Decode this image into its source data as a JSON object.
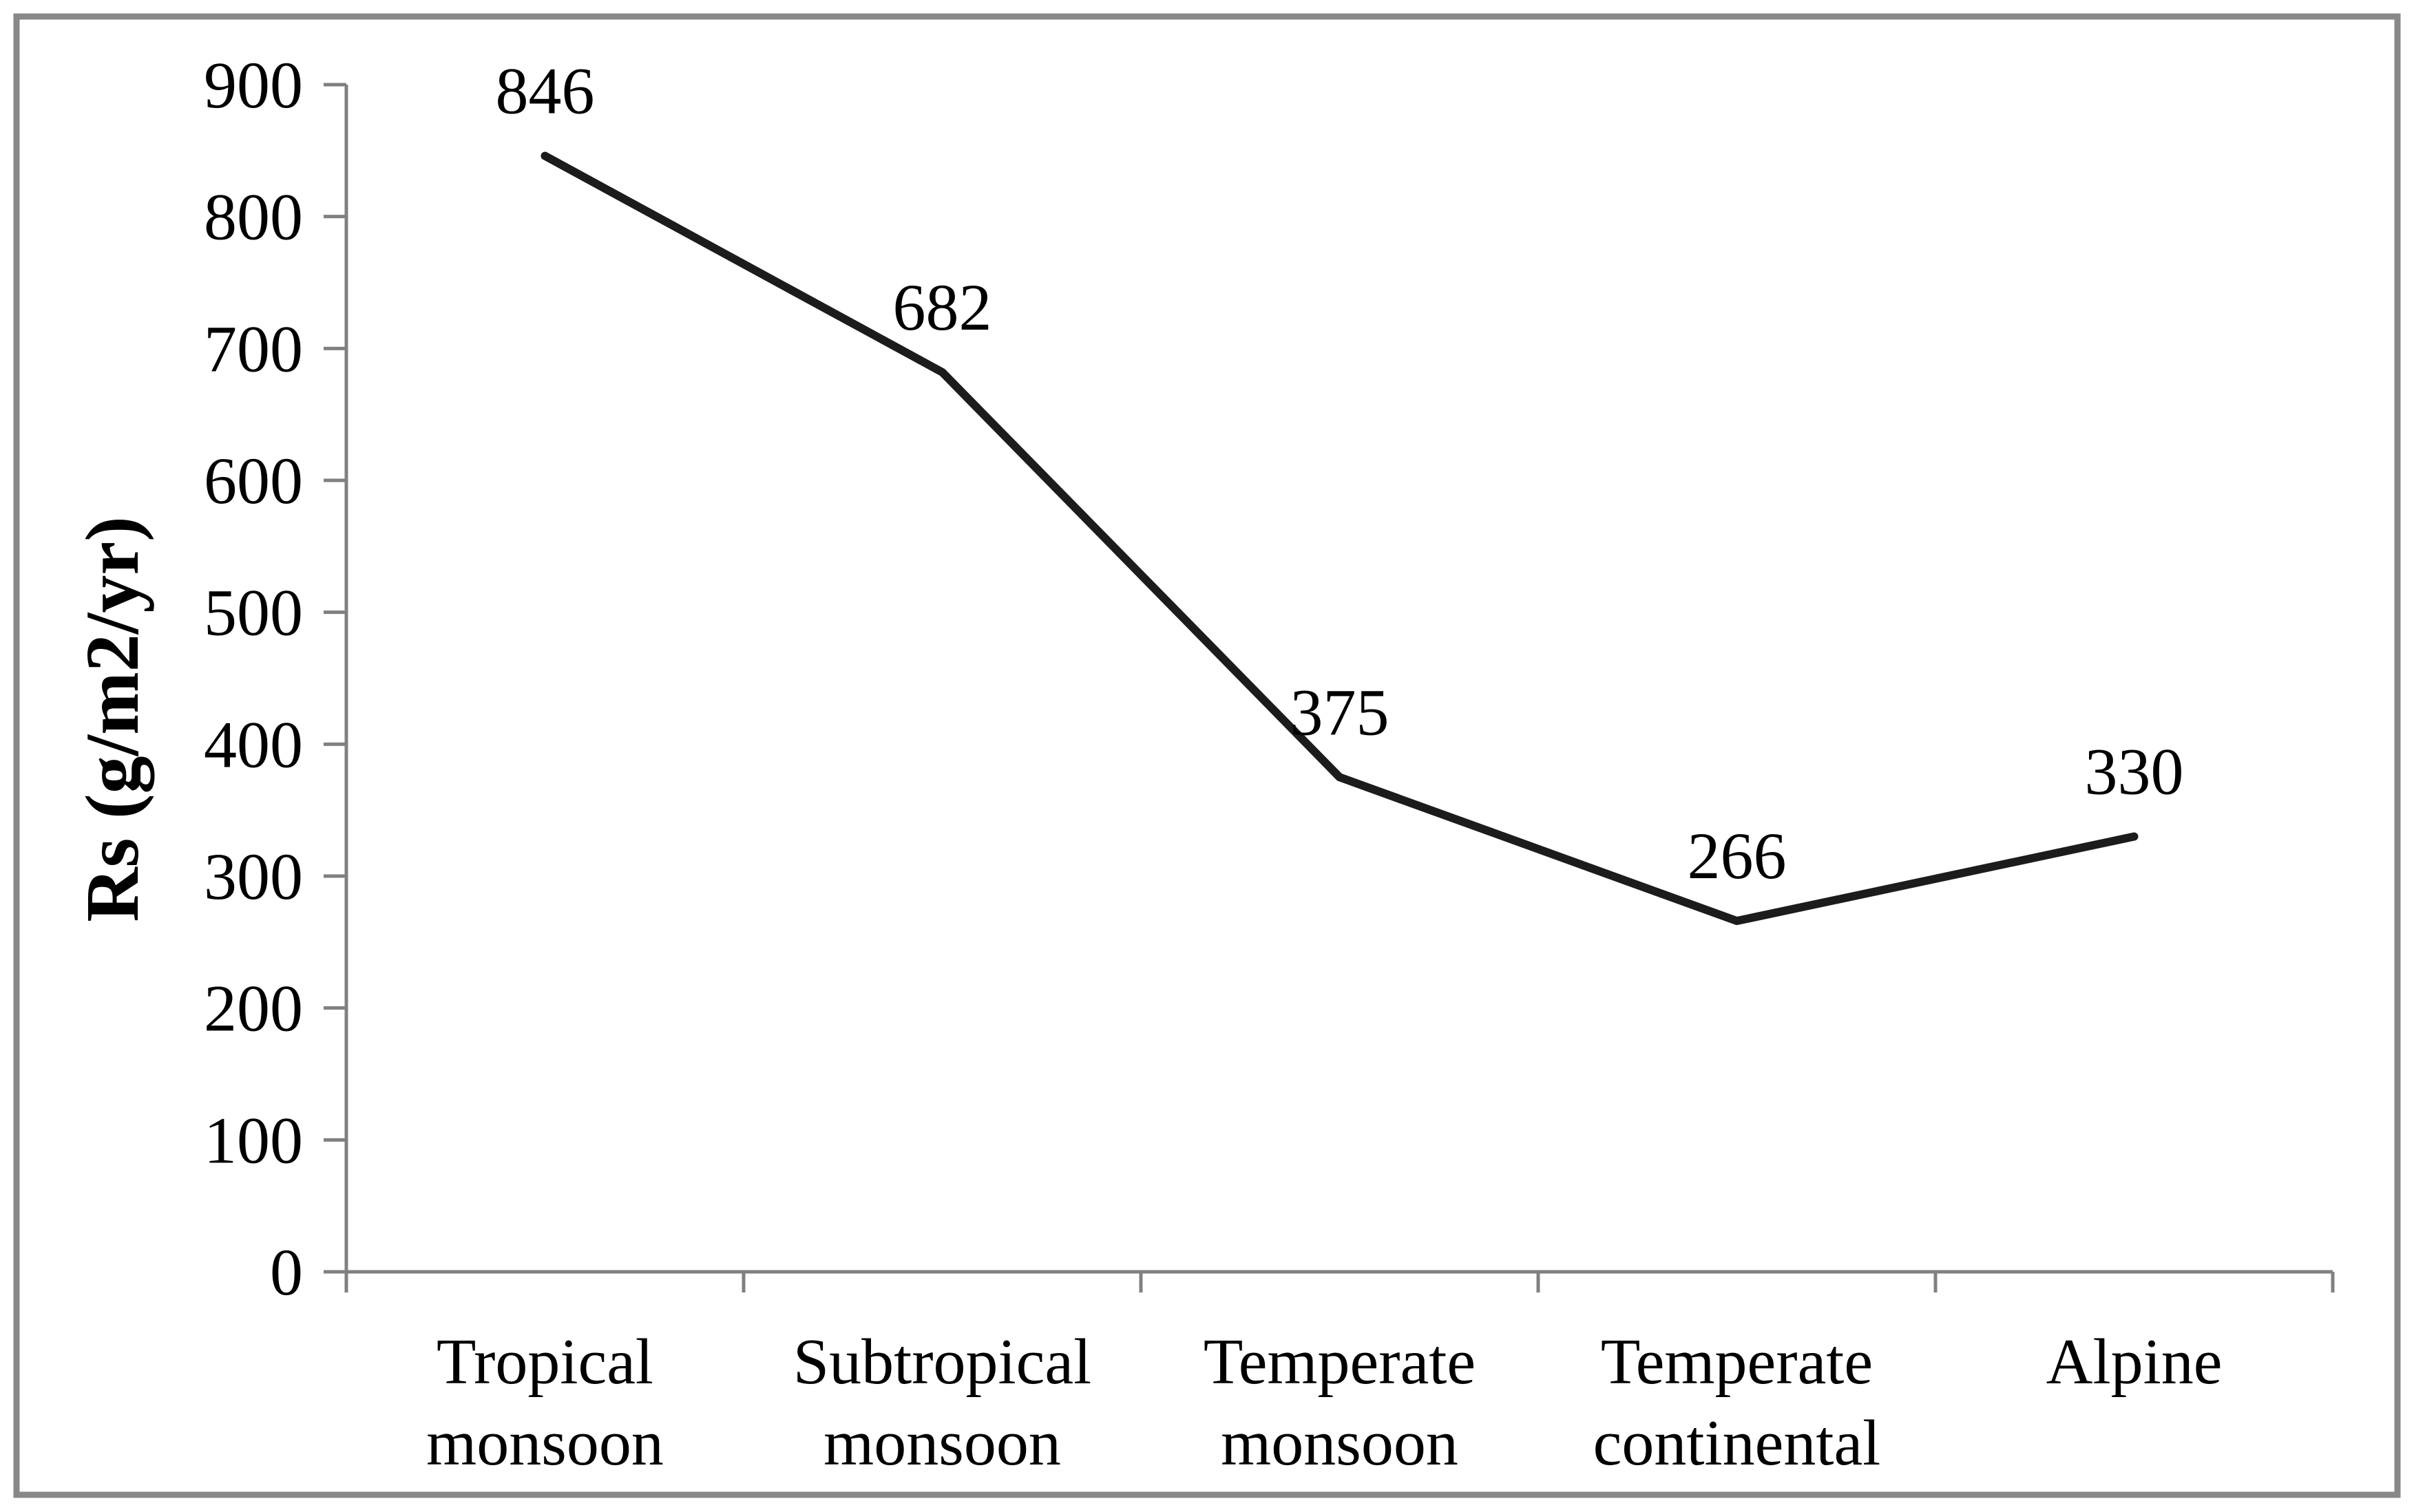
{
  "chart_data": {
    "type": "line",
    "categories": [
      "Tropical monsoon",
      "Subtropical monsoon",
      "Temperate monsoon",
      "Temperate continental",
      "Alpine"
    ],
    "values": [
      846,
      682,
      375,
      266,
      330
    ],
    "data_labels": [
      "846",
      "682",
      "375",
      "266",
      "330"
    ],
    "title": "",
    "xlabel": "",
    "ylabel": "Rs (g/m2/yr)",
    "ylim": [
      0,
      900
    ],
    "ytick_step": 100,
    "ytick_labels": [
      "0",
      "100",
      "200",
      "300",
      "400",
      "500",
      "600",
      "700",
      "800",
      "900"
    ],
    "grid": false,
    "legend": "none",
    "series_name": "Rs",
    "line_color": "#1c1c1c",
    "axis_color": "#808080",
    "border_color": "#888888",
    "text_color": "#000000"
  }
}
